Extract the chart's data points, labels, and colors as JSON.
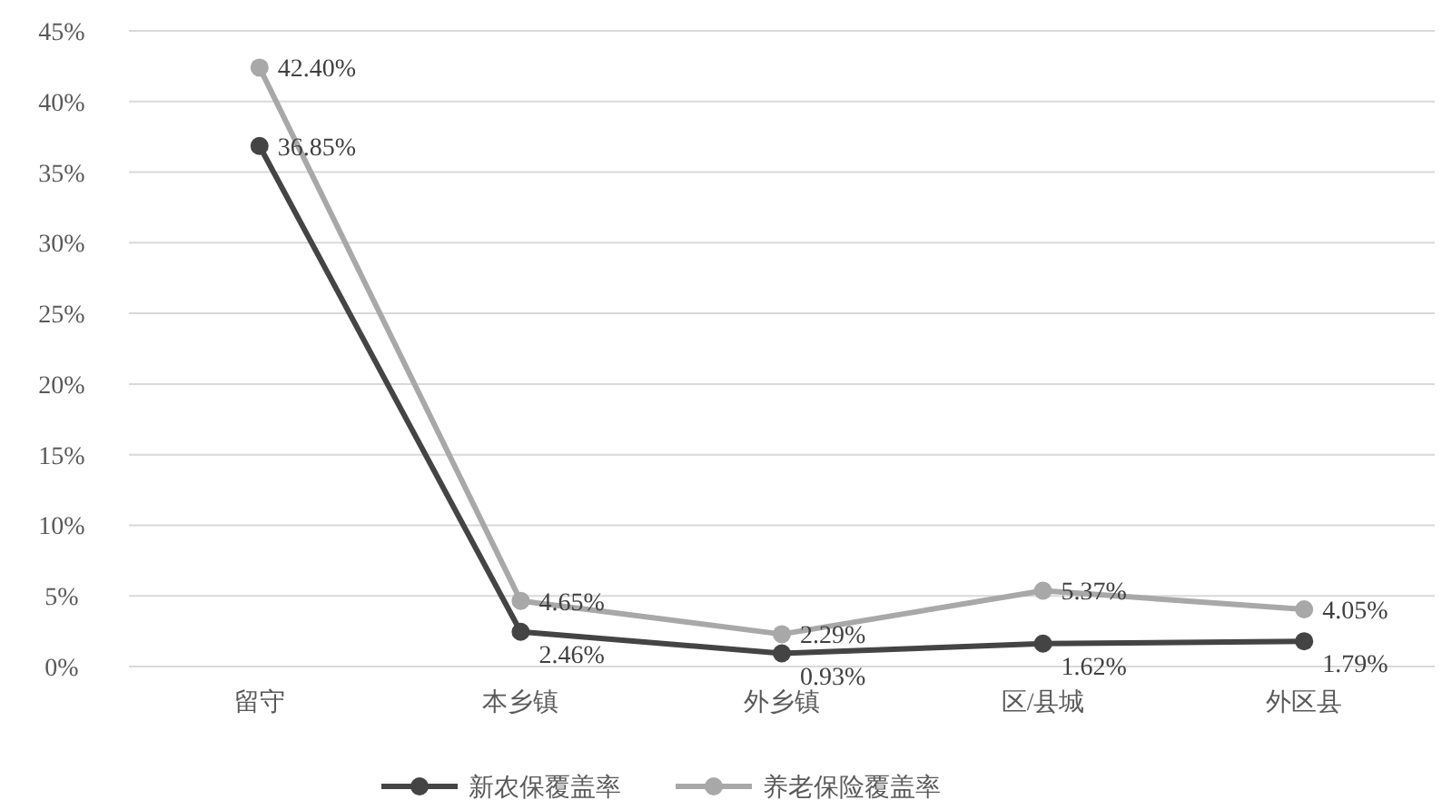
{
  "chart_data": {
    "type": "line",
    "categories": [
      "留守",
      "本乡镇",
      "外乡镇",
      "区/县城",
      "外区县"
    ],
    "series": [
      {
        "name": "新农保覆盖率",
        "color": "#444444",
        "values": [
          36.85,
          2.46,
          0.93,
          1.62,
          1.79
        ],
        "value_labels": [
          "36.85%",
          "2.46%",
          "0.93%",
          "1.62%",
          "1.79%"
        ]
      },
      {
        "name": "养老保险覆盖率",
        "color": "#a8a8a8",
        "values": [
          42.4,
          4.65,
          2.29,
          5.37,
          4.05
        ],
        "value_labels": [
          "42.40%",
          "4.65%",
          "2.29%",
          "5.37%",
          "4.05%"
        ]
      }
    ],
    "ylim": [
      0,
      45
    ],
    "yticks": [
      {
        "value": 0,
        "label": "0%"
      },
      {
        "value": 5,
        "label": "5%"
      },
      {
        "value": 10,
        "label": "10%"
      },
      {
        "value": 15,
        "label": "15%"
      },
      {
        "value": 20,
        "label": "20%"
      },
      {
        "value": 25,
        "label": "25%"
      },
      {
        "value": 30,
        "label": "30%"
      },
      {
        "value": 35,
        "label": "35%"
      },
      {
        "value": 40,
        "label": "40%"
      },
      {
        "value": 45,
        "label": "45%"
      }
    ],
    "grid": "y",
    "legend": "bottom",
    "marker": "circle",
    "line_style": "solid"
  }
}
